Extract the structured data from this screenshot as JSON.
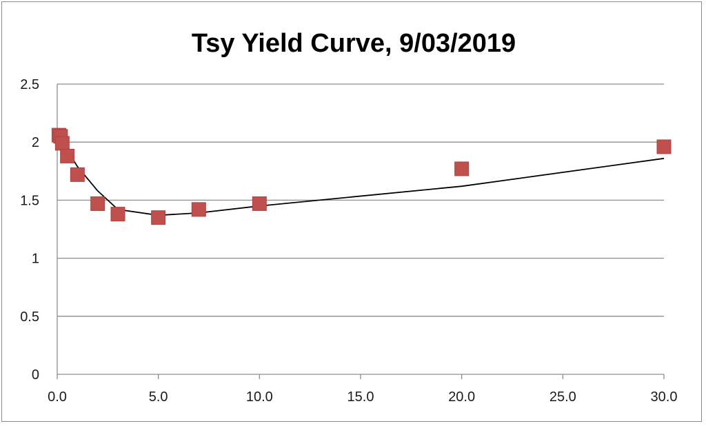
{
  "chart_data": {
    "type": "scatter",
    "title": "Tsy Yield Curve, 9/03/2019",
    "xlabel": "",
    "ylabel": "",
    "xlim": [
      0,
      30
    ],
    "ylim": [
      0,
      2.5
    ],
    "x_ticks": [
      "0.0",
      "5.0",
      "10.0",
      "15.0",
      "20.0",
      "25.0",
      "30.0"
    ],
    "x_tick_values": [
      0,
      5,
      10,
      15,
      20,
      25,
      30
    ],
    "y_ticks": [
      "0",
      "0.5",
      "1",
      "1.5",
      "2",
      "2.5"
    ],
    "y_tick_values": [
      0,
      0.5,
      1,
      1.5,
      2,
      2.5
    ],
    "grid": "horizontal",
    "legend": "none",
    "marker_color": "#c0504d",
    "line_color": "#000000",
    "series": [
      {
        "type": "scatter",
        "marker": "square",
        "x": [
          0.083,
          0.167,
          0.25,
          0.5,
          1,
          2,
          3,
          5,
          7,
          10,
          20,
          30
        ],
        "y": [
          2.06,
          2.05,
          1.99,
          1.88,
          1.72,
          1.47,
          1.38,
          1.35,
          1.42,
          1.47,
          1.77,
          1.96
        ]
      },
      {
        "type": "line",
        "x": [
          0.25,
          0.5,
          1,
          2,
          3,
          5,
          7,
          10,
          20,
          30
        ],
        "y": [
          2.03,
          1.93,
          1.79,
          1.58,
          1.42,
          1.37,
          1.39,
          1.45,
          1.62,
          1.86
        ]
      }
    ]
  }
}
